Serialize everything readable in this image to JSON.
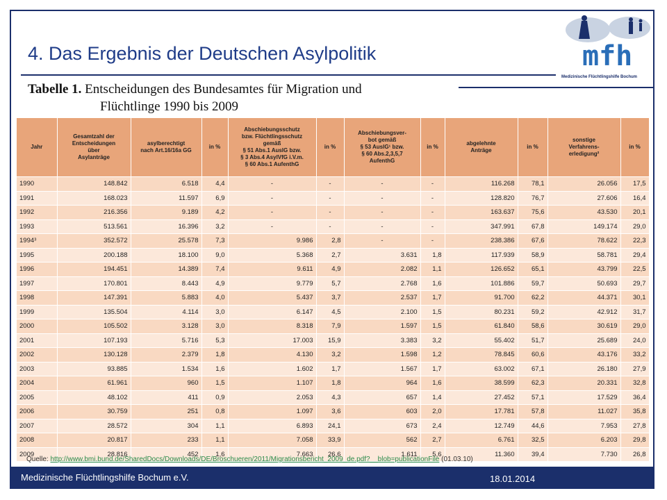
{
  "header": {
    "title": "4. Das Ergebnis der Deutschen Asylpolitik",
    "logo_text": "mfh",
    "logo_subtitle": "Medizinische Flüchtlingshilfe Bochum"
  },
  "caption": {
    "label": "Tabelle 1.",
    "lines": [
      "Entscheidungen des Bundesamtes für Migration und",
      "Flüchtlinge  1990 bis 2009"
    ]
  },
  "table": {
    "columns": [
      "Jahr",
      "Gesamtzahl der\nEntscheidungen\nüber\nAsylanträge",
      "asylberechtigt\nnach Art.16/16a GG",
      "in %",
      "Abschiebungsschutz\nbzw. Flüchtlingsschutz\ngemäß\n§ 51 Abs.1 AuslG bzw.\n§ 3 Abs.4 AsylVfG i.V.m.\n§ 60 Abs.1 AufenthG",
      "in %",
      "Abschiebungsver-\nbot gemäß\n§ 53 AuslG¹ bzw.\n§ 60 Abs.2,3,5,7\nAufenthG",
      "in %",
      "abgelehnte\nAnträge",
      "in %",
      "sonstige\nVerfahrens-\nerledigung²",
      "in %"
    ],
    "rows": [
      [
        "1990",
        "148.842",
        "6.518",
        "4,4",
        "-",
        "-",
        "-",
        "-",
        "116.268",
        "78,1",
        "26.056",
        "17,5"
      ],
      [
        "1991",
        "168.023",
        "11.597",
        "6,9",
        "-",
        "-",
        "-",
        "-",
        "128.820",
        "76,7",
        "27.606",
        "16,4"
      ],
      [
        "1992",
        "216.356",
        "9.189",
        "4,2",
        "-",
        "-",
        "-",
        "-",
        "163.637",
        "75,6",
        "43.530",
        "20,1"
      ],
      [
        "1993",
        "513.561",
        "16.396",
        "3,2",
        "-",
        "-",
        "-",
        "-",
        "347.991",
        "67,8",
        "149.174",
        "29,0"
      ],
      [
        "1994³",
        "352.572",
        "25.578",
        "7,3",
        "9.986",
        "2,8",
        "-",
        "-",
        "238.386",
        "67,6",
        "78.622",
        "22,3"
      ],
      [
        "1995",
        "200.188",
        "18.100",
        "9,0",
        "5.368",
        "2,7",
        "3.631",
        "1,8",
        "117.939",
        "58,9",
        "58.781",
        "29,4"
      ],
      [
        "1996",
        "194.451",
        "14.389",
        "7,4",
        "9.611",
        "4,9",
        "2.082",
        "1,1",
        "126.652",
        "65,1",
        "43.799",
        "22,5"
      ],
      [
        "1997",
        "170.801",
        "8.443",
        "4,9",
        "9.779",
        "5,7",
        "2.768",
        "1,6",
        "101.886",
        "59,7",
        "50.693",
        "29,7"
      ],
      [
        "1998",
        "147.391",
        "5.883",
        "4,0",
        "5.437",
        "3,7",
        "2.537",
        "1,7",
        "91.700",
        "62,2",
        "44.371",
        "30,1"
      ],
      [
        "1999",
        "135.504",
        "4.114",
        "3,0",
        "6.147",
        "4,5",
        "2.100",
        "1,5",
        "80.231",
        "59,2",
        "42.912",
        "31,7"
      ],
      [
        "2000",
        "105.502",
        "3.128",
        "3,0",
        "8.318",
        "7,9",
        "1.597",
        "1,5",
        "61.840",
        "58,6",
        "30.619",
        "29,0"
      ],
      [
        "2001",
        "107.193",
        "5.716",
        "5,3",
        "17.003",
        "15,9",
        "3.383",
        "3,2",
        "55.402",
        "51,7",
        "25.689",
        "24,0"
      ],
      [
        "2002",
        "130.128",
        "2.379",
        "1,8",
        "4.130",
        "3,2",
        "1.598",
        "1,2",
        "78.845",
        "60,6",
        "43.176",
        "33,2"
      ],
      [
        "2003",
        "93.885",
        "1.534",
        "1,6",
        "1.602",
        "1,7",
        "1.567",
        "1,7",
        "63.002",
        "67,1",
        "26.180",
        "27,9"
      ],
      [
        "2004",
        "61.961",
        "960",
        "1,5",
        "1.107",
        "1,8",
        "964",
        "1,6",
        "38.599",
        "62,3",
        "20.331",
        "32,8"
      ],
      [
        "2005",
        "48.102",
        "411",
        "0,9",
        "2.053",
        "4,3",
        "657",
        "1,4",
        "27.452",
        "57,1",
        "17.529",
        "36,4"
      ],
      [
        "2006",
        "30.759",
        "251",
        "0,8",
        "1.097",
        "3,6",
        "603",
        "2,0",
        "17.781",
        "57,8",
        "11.027",
        "35,8"
      ],
      [
        "2007",
        "28.572",
        "304",
        "1,1",
        "6.893",
        "24,1",
        "673",
        "2,4",
        "12.749",
        "44,6",
        "7.953",
        "27,8"
      ],
      [
        "2008",
        "20.817",
        "233",
        "1,1",
        "7.058",
        "33,9",
        "562",
        "2,7",
        "6.761",
        "32,5",
        "6.203",
        "29,8"
      ],
      [
        "2009",
        "28.816",
        "452",
        "1,6",
        "7.663",
        "26,6",
        "1.611",
        "5,6",
        "11.360",
        "39,4",
        "7.730",
        "26,8"
      ]
    ]
  },
  "source": {
    "label": "Quelle:",
    "url": "http://www.bmi.bund.de/SharedDocs/Downloads/DE/Broschueren/2011/Migrationsbericht_2009_de.pdf?__blob=publicationFile",
    "date": "(01.03.10)"
  },
  "footer": {
    "organization": "Medizinische Flüchtlingshilfe Bochum e.V.",
    "date": "18.01.2014"
  }
}
